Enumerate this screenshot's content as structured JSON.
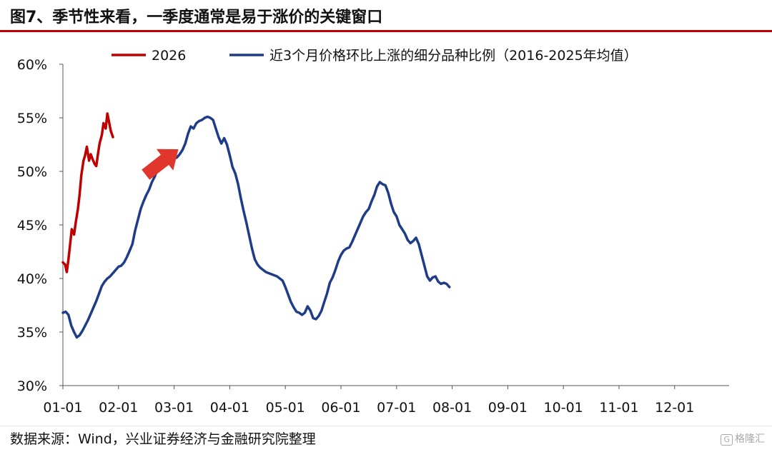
{
  "header": {
    "title": "图7、季节性来看，一季度通常是易于涨价的关键窗口"
  },
  "footer": {
    "source": "数据来源：Wind，兴业证券经济与金融研究院整理",
    "brand": "格隆汇",
    "brand_mark": "G"
  },
  "chart_data": {
    "type": "line",
    "title": "图7、季节性来看，一季度通常是易于涨价的关键窗口",
    "xlabel": "",
    "ylabel": "",
    "x_ticks": [
      "01-01",
      "02-01",
      "03-01",
      "04-01",
      "05-01",
      "06-01",
      "07-01",
      "08-01",
      "09-01",
      "10-01",
      "11-01",
      "12-01"
    ],
    "y_ticks": [
      "30%",
      "35%",
      "40%",
      "45%",
      "50%",
      "55%",
      "60%"
    ],
    "ylim": [
      30,
      60
    ],
    "x_domain_months": [
      1,
      12.98
    ],
    "legend_position": "top",
    "grid": false,
    "annotation": "red-up-arrow",
    "series": [
      {
        "name": "2026",
        "color": "#c00000",
        "points": [
          [
            1.0,
            41.5
          ],
          [
            1.04,
            41.3
          ],
          [
            1.07,
            40.6
          ],
          [
            1.1,
            41.8
          ],
          [
            1.13,
            43.2
          ],
          [
            1.16,
            44.6
          ],
          [
            1.2,
            44.1
          ],
          [
            1.23,
            45.2
          ],
          [
            1.27,
            46.5
          ],
          [
            1.3,
            47.8
          ],
          [
            1.33,
            49.6
          ],
          [
            1.37,
            51.0
          ],
          [
            1.4,
            51.5
          ],
          [
            1.43,
            52.3
          ],
          [
            1.47,
            51.0
          ],
          [
            1.5,
            51.6
          ],
          [
            1.53,
            51.2
          ],
          [
            1.57,
            50.7
          ],
          [
            1.6,
            50.5
          ],
          [
            1.63,
            51.6
          ],
          [
            1.66,
            52.6
          ],
          [
            1.7,
            53.4
          ],
          [
            1.73,
            54.5
          ],
          [
            1.77,
            54.0
          ],
          [
            1.8,
            55.4
          ],
          [
            1.83,
            54.6
          ],
          [
            1.86,
            53.8
          ],
          [
            1.9,
            53.2
          ]
        ]
      },
      {
        "name": "近3个月价格环比上涨的细分品种比例（2016-2025年均值）",
        "color": "#1f3c88",
        "points": [
          [
            1.0,
            36.8
          ],
          [
            1.05,
            36.9
          ],
          [
            1.1,
            36.6
          ],
          [
            1.15,
            35.6
          ],
          [
            1.2,
            35.0
          ],
          [
            1.25,
            34.5
          ],
          [
            1.3,
            34.7
          ],
          [
            1.35,
            35.1
          ],
          [
            1.4,
            35.6
          ],
          [
            1.45,
            36.1
          ],
          [
            1.5,
            36.7
          ],
          [
            1.55,
            37.3
          ],
          [
            1.6,
            37.9
          ],
          [
            1.65,
            38.6
          ],
          [
            1.7,
            39.3
          ],
          [
            1.75,
            39.7
          ],
          [
            1.8,
            40.0
          ],
          [
            1.85,
            40.2
          ],
          [
            1.9,
            40.5
          ],
          [
            1.95,
            40.8
          ],
          [
            2.0,
            41.1
          ],
          [
            2.05,
            41.2
          ],
          [
            2.1,
            41.5
          ],
          [
            2.15,
            42.0
          ],
          [
            2.2,
            42.6
          ],
          [
            2.25,
            43.2
          ],
          [
            2.3,
            44.5
          ],
          [
            2.35,
            45.5
          ],
          [
            2.4,
            46.5
          ],
          [
            2.45,
            47.2
          ],
          [
            2.5,
            47.8
          ],
          [
            2.55,
            48.3
          ],
          [
            2.6,
            49.0
          ],
          [
            2.65,
            49.5
          ],
          [
            2.7,
            50.2
          ],
          [
            2.75,
            50.8
          ],
          [
            2.8,
            51.0
          ],
          [
            2.85,
            51.2
          ],
          [
            2.9,
            51.1
          ],
          [
            2.95,
            51.0
          ],
          [
            3.0,
            51.2
          ],
          [
            3.05,
            51.3
          ],
          [
            3.1,
            51.6
          ],
          [
            3.15,
            52.0
          ],
          [
            3.2,
            52.6
          ],
          [
            3.25,
            53.5
          ],
          [
            3.3,
            54.2
          ],
          [
            3.35,
            54.0
          ],
          [
            3.4,
            54.5
          ],
          [
            3.45,
            54.7
          ],
          [
            3.5,
            54.8
          ],
          [
            3.55,
            55.0
          ],
          [
            3.6,
            55.1
          ],
          [
            3.65,
            55.0
          ],
          [
            3.7,
            54.8
          ],
          [
            3.75,
            54.0
          ],
          [
            3.8,
            53.2
          ],
          [
            3.85,
            52.6
          ],
          [
            3.9,
            53.1
          ],
          [
            3.95,
            52.5
          ],
          [
            4.0,
            51.5
          ],
          [
            4.05,
            50.4
          ],
          [
            4.1,
            49.8
          ],
          [
            4.15,
            48.8
          ],
          [
            4.2,
            47.5
          ],
          [
            4.25,
            46.3
          ],
          [
            4.3,
            45.2
          ],
          [
            4.35,
            44.0
          ],
          [
            4.4,
            42.8
          ],
          [
            4.45,
            41.8
          ],
          [
            4.5,
            41.3
          ],
          [
            4.55,
            41.0
          ],
          [
            4.6,
            40.8
          ],
          [
            4.65,
            40.6
          ],
          [
            4.7,
            40.5
          ],
          [
            4.75,
            40.4
          ],
          [
            4.8,
            40.3
          ],
          [
            4.85,
            40.2
          ],
          [
            4.9,
            40.0
          ],
          [
            4.95,
            39.8
          ],
          [
            5.0,
            39.2
          ],
          [
            5.05,
            38.5
          ],
          [
            5.1,
            37.8
          ],
          [
            5.15,
            37.3
          ],
          [
            5.2,
            36.9
          ],
          [
            5.25,
            36.8
          ],
          [
            5.3,
            36.6
          ],
          [
            5.35,
            36.8
          ],
          [
            5.4,
            37.4
          ],
          [
            5.45,
            37.0
          ],
          [
            5.5,
            36.3
          ],
          [
            5.55,
            36.2
          ],
          [
            5.6,
            36.5
          ],
          [
            5.65,
            37.0
          ],
          [
            5.7,
            37.8
          ],
          [
            5.75,
            38.6
          ],
          [
            5.8,
            39.6
          ],
          [
            5.85,
            40.1
          ],
          [
            5.9,
            40.8
          ],
          [
            5.95,
            41.6
          ],
          [
            6.0,
            42.2
          ],
          [
            6.05,
            42.6
          ],
          [
            6.1,
            42.8
          ],
          [
            6.15,
            42.9
          ],
          [
            6.2,
            43.4
          ],
          [
            6.25,
            44.0
          ],
          [
            6.3,
            44.6
          ],
          [
            6.35,
            45.2
          ],
          [
            6.4,
            45.8
          ],
          [
            6.45,
            46.2
          ],
          [
            6.5,
            46.5
          ],
          [
            6.55,
            47.2
          ],
          [
            6.6,
            47.8
          ],
          [
            6.65,
            48.6
          ],
          [
            6.7,
            49.0
          ],
          [
            6.75,
            48.8
          ],
          [
            6.8,
            48.7
          ],
          [
            6.85,
            48.0
          ],
          [
            6.9,
            47.0
          ],
          [
            6.95,
            46.2
          ],
          [
            7.0,
            45.8
          ],
          [
            7.05,
            45.0
          ],
          [
            7.1,
            44.6
          ],
          [
            7.15,
            44.2
          ],
          [
            7.2,
            43.6
          ],
          [
            7.25,
            43.3
          ],
          [
            7.3,
            43.5
          ],
          [
            7.35,
            43.8
          ],
          [
            7.4,
            43.2
          ],
          [
            7.45,
            42.2
          ],
          [
            7.5,
            41.2
          ],
          [
            7.55,
            40.2
          ],
          [
            7.6,
            39.8
          ],
          [
            7.65,
            40.1
          ],
          [
            7.7,
            40.2
          ],
          [
            7.75,
            39.7
          ],
          [
            7.8,
            39.5
          ],
          [
            7.85,
            39.6
          ],
          [
            7.9,
            39.5
          ],
          [
            7.95,
            39.2
          ]
        ]
      }
    ]
  }
}
